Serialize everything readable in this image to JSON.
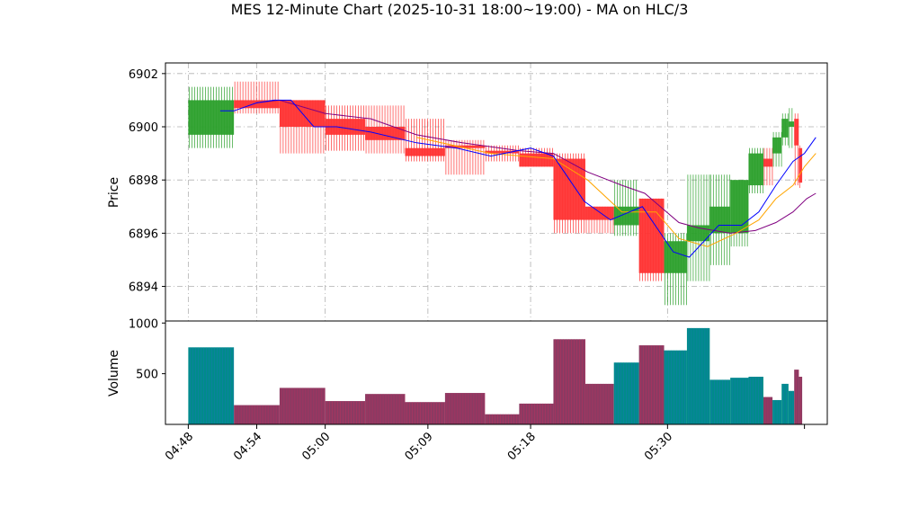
{
  "chart_data": {
    "type": "candlestick",
    "title": "MES 12-Minute Chart (2025-10-31 18:00~19:00) - MA on HLC/3",
    "price_panel": {
      "ylabel": "Price",
      "yticks": [
        6894,
        6896,
        6898,
        6900,
        6902
      ],
      "ylim": [
        6892.7,
        6902.4
      ],
      "grid": true
    },
    "volume_panel": {
      "ylabel": "Volume",
      "yticks": [
        500,
        1000
      ],
      "ylim": [
        0,
        1020
      ],
      "grid": false
    },
    "x_ticks": [
      "04:48",
      "04:54",
      "05:00",
      "05:09",
      "05:18",
      "05:30",
      ""
    ],
    "x_tick_positions": [
      0,
      6,
      12,
      21,
      30,
      42,
      54
    ],
    "xlim": [
      -2,
      56
    ],
    "colors": {
      "up": "#2ca02c",
      "down": "#ff3333",
      "ma_fast": "#0000ff",
      "ma_mid": "#ffa500",
      "ma_slow": "#800080",
      "volume_up": "#008b8b",
      "volume_down": "#8b3a62"
    },
    "candles": [
      {
        "t": 0,
        "w": 4,
        "open": 6899.7,
        "high": 6901.5,
        "low": 6899.2,
        "close": 6901.0,
        "volume": 760
      },
      {
        "t": 4,
        "w": 4,
        "open": 6901.0,
        "high": 6901.7,
        "low": 6900.5,
        "close": 6900.7,
        "volume": 190
      },
      {
        "t": 8,
        "w": 4,
        "open": 6901.0,
        "high": 6901.0,
        "low": 6899.0,
        "close": 6900.0,
        "volume": 360
      },
      {
        "t": 12,
        "w": 3.5,
        "open": 6900.3,
        "high": 6900.8,
        "low": 6899.1,
        "close": 6899.7,
        "volume": 230
      },
      {
        "t": 15.5,
        "w": 3.5,
        "open": 6900.0,
        "high": 6900.8,
        "low": 6899.0,
        "close": 6899.5,
        "volume": 300
      },
      {
        "t": 19,
        "w": 3.5,
        "open": 6899.2,
        "high": 6900.3,
        "low": 6898.7,
        "close": 6898.9,
        "volume": 220
      },
      {
        "t": 22.5,
        "w": 3.5,
        "open": 6899.3,
        "high": 6899.5,
        "low": 6898.2,
        "close": 6899.2,
        "volume": 310
      },
      {
        "t": 26,
        "w": 3,
        "open": 6899.1,
        "high": 6899.3,
        "low": 6898.7,
        "close": 6899.0,
        "volume": 100
      },
      {
        "t": 29,
        "w": 3,
        "open": 6899.0,
        "high": 6899.2,
        "low": 6898.5,
        "close": 6898.5,
        "volume": 205
      },
      {
        "t": 32,
        "w": 2.8,
        "open": 6898.8,
        "high": 6899.0,
        "low": 6896.0,
        "close": 6896.5,
        "volume": 840
      },
      {
        "t": 34.8,
        "w": 2.5,
        "open": 6897.0,
        "high": 6897.0,
        "low": 6896.0,
        "close": 6896.5,
        "volume": 400
      },
      {
        "t": 37.3,
        "w": 2.2,
        "open": 6896.3,
        "high": 6898.0,
        "low": 6895.9,
        "close": 6897.0,
        "volume": 610
      },
      {
        "t": 39.5,
        "w": 2.2,
        "open": 6897.3,
        "high": 6897.3,
        "low": 6894.2,
        "close": 6894.5,
        "volume": 780
      },
      {
        "t": 41.7,
        "w": 2,
        "open": 6894.5,
        "high": 6896.0,
        "low": 6893.3,
        "close": 6895.7,
        "volume": 730
      },
      {
        "t": 43.7,
        "w": 2,
        "open": 6895.7,
        "high": 6898.2,
        "low": 6894.2,
        "close": 6896.3,
        "volume": 950
      },
      {
        "t": 45.7,
        "w": 1.8,
        "open": 6896.0,
        "high": 6898.2,
        "low": 6894.8,
        "close": 6897.0,
        "volume": 440
      },
      {
        "t": 47.5,
        "w": 1.6,
        "open": 6896.0,
        "high": 6898.0,
        "low": 6895.5,
        "close": 6898.0,
        "volume": 460
      },
      {
        "t": 49.1,
        "w": 1.3,
        "open": 6897.8,
        "high": 6899.2,
        "low": 6897.5,
        "close": 6899.0,
        "volume": 470
      },
      {
        "t": 50.4,
        "w": 0.8,
        "open": 6898.8,
        "high": 6899.2,
        "low": 6897.8,
        "close": 6898.5,
        "volume": 270
      },
      {
        "t": 51.2,
        "w": 0.8,
        "open": 6899.0,
        "high": 6899.8,
        "low": 6898.5,
        "close": 6899.6,
        "volume": 240
      },
      {
        "t": 52,
        "w": 0.6,
        "open": 6899.6,
        "high": 6900.5,
        "low": 6899.3,
        "close": 6900.3,
        "volume": 400
      },
      {
        "t": 52.6,
        "w": 0.5,
        "open": 6900.0,
        "high": 6900.7,
        "low": 6899.2,
        "close": 6900.2,
        "volume": 330
      },
      {
        "t": 53.1,
        "w": 0.4,
        "open": 6900.3,
        "high": 6900.5,
        "low": 6897.8,
        "close": 6899.3,
        "volume": 540
      },
      {
        "t": 53.5,
        "w": 0.3,
        "open": 6899.2,
        "high": 6899.3,
        "low": 6897.7,
        "close": 6897.9,
        "volume": 470
      }
    ],
    "ma_fast": [
      [
        2.8,
        6900.6
      ],
      [
        4,
        6900.6
      ],
      [
        6,
        6900.9
      ],
      [
        7.5,
        6901.0
      ],
      [
        9,
        6901.0
      ],
      [
        11,
        6900.0
      ],
      [
        13,
        6900.0
      ],
      [
        16,
        6899.8
      ],
      [
        20,
        6899.4
      ],
      [
        23.5,
        6899.2
      ],
      [
        26.5,
        6898.9
      ],
      [
        30,
        6899.2
      ],
      [
        32,
        6898.9
      ],
      [
        34.7,
        6897.2
      ],
      [
        37,
        6896.5
      ],
      [
        39.8,
        6897.0
      ],
      [
        42.5,
        6895.3
      ],
      [
        43.9,
        6895.1
      ],
      [
        46.5,
        6896.3
      ],
      [
        48.5,
        6896.3
      ],
      [
        50,
        6896.8
      ],
      [
        51.5,
        6897.8
      ],
      [
        53,
        6898.7
      ],
      [
        54,
        6899.0
      ],
      [
        55,
        6899.6
      ]
    ],
    "ma_mid": [
      [
        20,
        6899.6
      ],
      [
        26.5,
        6899.0
      ],
      [
        32,
        6898.8
      ],
      [
        35,
        6898.0
      ],
      [
        38,
        6896.8
      ],
      [
        41,
        6896.8
      ],
      [
        43,
        6895.8
      ],
      [
        45.5,
        6895.5
      ],
      [
        48,
        6896.0
      ],
      [
        50,
        6896.5
      ],
      [
        51.5,
        6897.3
      ],
      [
        53,
        6897.8
      ],
      [
        54,
        6898.5
      ],
      [
        55,
        6899.0
      ]
    ],
    "ma_slow": [
      [
        6,
        6900.9
      ],
      [
        8,
        6901.0
      ],
      [
        12,
        6900.5
      ],
      [
        16,
        6900.3
      ],
      [
        20,
        6899.7
      ],
      [
        24,
        6899.4
      ],
      [
        29,
        6899.1
      ],
      [
        32,
        6899.0
      ],
      [
        35,
        6898.3
      ],
      [
        38,
        6897.8
      ],
      [
        40,
        6897.5
      ],
      [
        43,
        6896.4
      ],
      [
        44.7,
        6896.2
      ],
      [
        47.5,
        6896.0
      ],
      [
        49.7,
        6896.1
      ],
      [
        51.5,
        6896.4
      ],
      [
        53,
        6896.8
      ],
      [
        54.2,
        6897.3
      ],
      [
        55,
        6897.5
      ]
    ]
  }
}
